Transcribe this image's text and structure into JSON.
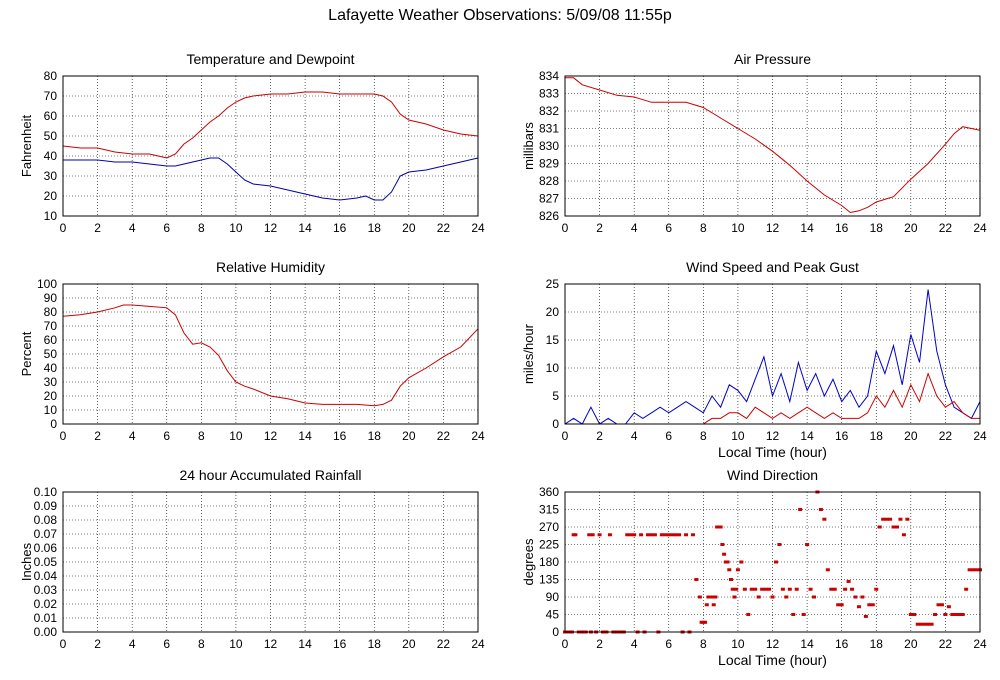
{
  "title": "Lafayette Weather Observations: 5/09/08 11:55p",
  "chart_data": [
    {
      "type": "line",
      "title": "Temperature and Dewpoint",
      "xlabel": "",
      "ylabel": "Fahrenheit",
      "xlim": [
        0,
        24
      ],
      "ylim": [
        10,
        80
      ],
      "xticks": [
        0,
        2,
        4,
        6,
        8,
        10,
        12,
        14,
        16,
        18,
        20,
        22,
        24
      ],
      "yticks": [
        10,
        20,
        30,
        40,
        50,
        60,
        70,
        80
      ],
      "grid": true,
      "series": [
        {
          "color": "#cc0000",
          "x": [
            0,
            1,
            2,
            3,
            4,
            5,
            6,
            6.5,
            7,
            7.5,
            8,
            8.5,
            9,
            9.5,
            10,
            10.5,
            11,
            12,
            13,
            14,
            15,
            16,
            17,
            18,
            18.5,
            19,
            19.5,
            20,
            21,
            22,
            23,
            24
          ],
          "y": [
            45,
            44,
            44,
            42,
            41,
            41,
            39,
            41,
            46,
            49,
            53,
            57,
            60,
            64,
            67,
            69,
            70,
            71,
            71,
            72,
            72,
            71,
            71,
            71,
            70,
            67,
            61,
            58,
            56,
            53,
            51,
            50
          ]
        },
        {
          "color": "#0000aa",
          "x": [
            0,
            1,
            2,
            3,
            4,
            5,
            6,
            6.5,
            7,
            7.5,
            8,
            8.5,
            9,
            9.5,
            10,
            10.5,
            11,
            12,
            13,
            14,
            15,
            16,
            17,
            17.5,
            18,
            18.5,
            19,
            19.5,
            20,
            21,
            22,
            23,
            24
          ],
          "y": [
            38,
            38,
            38,
            37,
            37,
            36,
            35,
            35,
            36,
            37,
            38,
            39,
            39,
            36,
            32,
            28,
            26,
            25,
            23,
            21,
            19,
            18,
            19,
            20,
            18,
            18,
            22,
            30,
            32,
            33,
            35,
            37,
            39
          ]
        }
      ]
    },
    {
      "type": "line",
      "title": "Air Pressure",
      "xlabel": "",
      "ylabel": "millibars",
      "xlim": [
        0,
        24
      ],
      "ylim": [
        826,
        834
      ],
      "xticks": [
        0,
        2,
        4,
        6,
        8,
        10,
        12,
        14,
        16,
        18,
        20,
        22,
        24
      ],
      "yticks": [
        826,
        827,
        828,
        829,
        830,
        831,
        832,
        833,
        834
      ],
      "grid": true,
      "series": [
        {
          "color": "#cc0000",
          "x": [
            0,
            0.5,
            1,
            2,
            3,
            4,
            5,
            6,
            7,
            8,
            9,
            10,
            11,
            12,
            13,
            14,
            15,
            16,
            16.5,
            17,
            17.5,
            18,
            19,
            20,
            21,
            22,
            22.5,
            23,
            23.5,
            24
          ],
          "y": [
            833.9,
            833.9,
            833.5,
            833.2,
            832.9,
            832.8,
            832.5,
            832.5,
            832.5,
            832.2,
            831.6,
            831,
            830.4,
            829.7,
            828.9,
            828,
            827.2,
            826.6,
            826.2,
            826.3,
            826.5,
            826.8,
            827.1,
            828.1,
            829,
            830.1,
            830.7,
            831.1,
            831,
            830.9
          ]
        }
      ]
    },
    {
      "type": "line",
      "title": "Relative Humidity",
      "xlabel": "",
      "ylabel": "Percent",
      "xlim": [
        0,
        24
      ],
      "ylim": [
        0,
        100
      ],
      "xticks": [
        0,
        2,
        4,
        6,
        8,
        10,
        12,
        14,
        16,
        18,
        20,
        22,
        24
      ],
      "yticks": [
        0,
        10,
        20,
        30,
        40,
        50,
        60,
        70,
        80,
        90,
        100
      ],
      "grid": true,
      "series": [
        {
          "color": "#cc0000",
          "x": [
            0,
            1,
            2,
            3,
            3.5,
            4,
            5,
            6,
            6.5,
            7,
            7.5,
            8,
            8.5,
            9,
            9.5,
            10,
            10.5,
            11,
            12,
            13,
            14,
            15,
            16,
            17,
            18,
            18.5,
            19,
            19.5,
            20,
            21,
            22,
            23,
            24
          ],
          "y": [
            77,
            78,
            80,
            83,
            85,
            85,
            84,
            83,
            78,
            65,
            57,
            58,
            55,
            49,
            38,
            30,
            27,
            25,
            20,
            18,
            15,
            14,
            14,
            14,
            13,
            14,
            17,
            27,
            33,
            40,
            48,
            55,
            68
          ]
        }
      ]
    },
    {
      "type": "line",
      "title": "Wind Speed and Peak Gust",
      "xlabel": "Local Time (hour)",
      "ylabel": "miles/hour",
      "xlim": [
        0,
        24
      ],
      "ylim": [
        0,
        25
      ],
      "xticks": [
        0,
        2,
        4,
        6,
        8,
        10,
        12,
        14,
        16,
        18,
        20,
        22,
        24
      ],
      "yticks": [
        0,
        5,
        10,
        15,
        20,
        25
      ],
      "grid": true,
      "series": [
        {
          "color": "#0000cc",
          "x": [
            0,
            0.5,
            1,
            1.5,
            2,
            2.5,
            3,
            3.5,
            4,
            4.5,
            5,
            5.5,
            6,
            6.5,
            7,
            7.5,
            8,
            8.5,
            9,
            9.5,
            10,
            10.5,
            11,
            11.5,
            12,
            12.5,
            13,
            13.5,
            14,
            14.5,
            15,
            15.5,
            16,
            16.5,
            17,
            17.5,
            18,
            18.5,
            19,
            19.5,
            20,
            20.5,
            21,
            21.5,
            22,
            22.5,
            23,
            23.5,
            24
          ],
          "y": [
            0,
            1,
            0,
            3,
            0,
            1,
            0,
            0,
            2,
            1,
            2,
            3,
            2,
            3,
            4,
            3,
            2,
            5,
            3,
            7,
            6,
            4,
            8,
            12,
            5,
            9,
            4,
            11,
            6,
            9,
            5,
            8,
            4,
            6,
            3,
            5,
            13,
            9,
            14,
            7,
            16,
            11,
            24,
            13,
            7,
            3,
            2,
            1,
            4
          ]
        },
        {
          "color": "#cc0000",
          "x": [
            0,
            1,
            2,
            3,
            4,
            5,
            6,
            7,
            8,
            8.5,
            9,
            9.5,
            10,
            10.5,
            11,
            11.5,
            12,
            12.5,
            13,
            13.5,
            14,
            14.5,
            15,
            15.5,
            16,
            16.5,
            17,
            17.5,
            18,
            18.5,
            19,
            19.5,
            20,
            20.5,
            21,
            21.5,
            22,
            22.5,
            23,
            23.5,
            24
          ],
          "y": [
            0,
            0,
            0,
            0,
            0,
            0,
            0,
            0,
            0,
            1,
            1,
            2,
            2,
            1,
            3,
            2,
            1,
            2,
            1,
            2,
            3,
            2,
            1,
            2,
            1,
            1,
            1,
            2,
            5,
            3,
            6,
            3,
            7,
            4,
            9,
            5,
            3,
            4,
            2,
            1,
            1
          ]
        }
      ]
    },
    {
      "type": "line",
      "title": "24 hour Accumulated Rainfall",
      "xlabel": "",
      "ylabel": "Inches",
      "xlim": [
        0,
        24
      ],
      "ylim": [
        0,
        0.1
      ],
      "xticks": [
        0,
        2,
        4,
        6,
        8,
        10,
        12,
        14,
        16,
        18,
        20,
        22,
        24
      ],
      "yticks": [
        "0.00",
        "0.01",
        "0.02",
        "0.03",
        "0.04",
        "0.05",
        "0.06",
        "0.07",
        "0.08",
        "0.09",
        "0.10"
      ],
      "grid": true,
      "series": [
        {
          "color": "#cc0000",
          "x": [
            0,
            24
          ],
          "y": [
            0,
            0
          ]
        }
      ]
    },
    {
      "type": "scatter",
      "title": "Wind Direction",
      "xlabel": "Local Time (hour)",
      "ylabel": "degrees",
      "xlim": [
        0,
        24
      ],
      "ylim": [
        0,
        360
      ],
      "xticks": [
        0,
        2,
        4,
        6,
        8,
        10,
        12,
        14,
        16,
        18,
        20,
        22,
        24
      ],
      "yticks": [
        0,
        45,
        90,
        135,
        180,
        225,
        270,
        315,
        360
      ],
      "grid": true,
      "series": [
        {
          "color": "#cc0000",
          "x": [
            0,
            0.2,
            0.4,
            0.5,
            0.6,
            0.8,
            1.0,
            1.2,
            1.4,
            1.5,
            1.6,
            1.8,
            2.0,
            2.2,
            2.4,
            2.6,
            2.8,
            3.0,
            3.2,
            3.4,
            3.6,
            3.8,
            4.0,
            4.2,
            4.4,
            4.6,
            4.8,
            5.0,
            5.2,
            5.4,
            5.6,
            5.8,
            6.0,
            6.2,
            6.4,
            6.6,
            6.8,
            7.0,
            7.2,
            7.4,
            7.6,
            7.8,
            7.9,
            8.0,
            8.1,
            8.2,
            8.3,
            8.4,
            8.5,
            8.6,
            8.7,
            8.8,
            9.0,
            9.1,
            9.2,
            9.3,
            9.4,
            9.5,
            9.6,
            9.7,
            9.8,
            9.9,
            10.0,
            10.2,
            10.4,
            10.6,
            10.8,
            11.0,
            11.2,
            11.4,
            11.6,
            11.8,
            12.0,
            12.2,
            12.4,
            12.6,
            12.8,
            13.0,
            13.2,
            13.4,
            13.6,
            13.8,
            14.0,
            14.2,
            14.4,
            14.6,
            14.8,
            15.0,
            15.2,
            15.4,
            15.6,
            15.8,
            16.0,
            16.2,
            16.4,
            16.6,
            16.8,
            17.0,
            17.2,
            17.4,
            17.6,
            17.8,
            18.0,
            18.2,
            18.4,
            18.6,
            18.8,
            19.0,
            19.2,
            19.4,
            19.6,
            19.8,
            20.0,
            20.2,
            20.4,
            20.6,
            20.8,
            21.0,
            21.2,
            21.4,
            21.6,
            21.8,
            22.0,
            22.2,
            22.4,
            22.6,
            22.8,
            23.0,
            23.2,
            23.4,
            23.6,
            23.8,
            24.0
          ],
          "y": [
            0,
            0,
            0,
            250,
            250,
            0,
            0,
            0,
            250,
            0,
            250,
            0,
            250,
            0,
            0,
            250,
            0,
            0,
            0,
            0,
            250,
            250,
            250,
            0,
            250,
            0,
            250,
            250,
            250,
            0,
            250,
            250,
            250,
            250,
            250,
            250,
            0,
            250,
            0,
            250,
            135,
            90,
            25,
            25,
            25,
            70,
            90,
            90,
            90,
            70,
            90,
            270,
            270,
            225,
            200,
            180,
            180,
            160,
            135,
            110,
            90,
            110,
            160,
            180,
            110,
            45,
            110,
            110,
            90,
            110,
            110,
            110,
            90,
            180,
            225,
            110,
            90,
            110,
            45,
            110,
            315,
            45,
            225,
            110,
            90,
            360,
            315,
            290,
            160,
            110,
            110,
            70,
            70,
            110,
            130,
            110,
            90,
            65,
            90,
            40,
            70,
            70,
            110,
            270,
            290,
            290,
            290,
            270,
            270,
            290,
            250,
            290,
            45,
            45,
            20,
            20,
            20,
            20,
            20,
            45,
            70,
            70,
            45,
            65,
            45,
            45,
            45,
            45,
            110,
            160,
            160,
            160,
            160
          ]
        }
      ]
    }
  ]
}
